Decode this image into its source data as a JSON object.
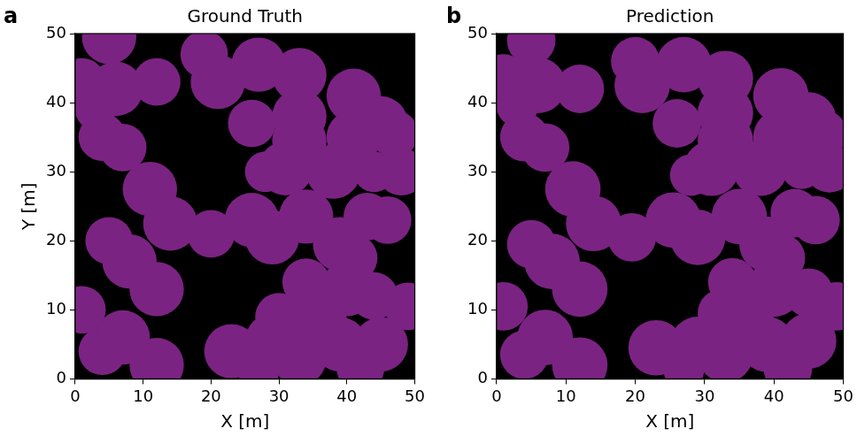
{
  "chart_data": [
    {
      "type": "bubble",
      "panel_label": "a",
      "title": "Ground Truth",
      "x_label": "X [m]",
      "y_label": "Y [m]",
      "xlim": [
        0,
        50
      ],
      "ylim": [
        0,
        50
      ],
      "xticks": [
        0,
        10,
        20,
        30,
        40,
        50
      ],
      "yticks": [
        0,
        10,
        20,
        30,
        40,
        50
      ],
      "grid": false,
      "color": "#7b2382",
      "points": [
        {
          "x": 5,
          "y": 49.5,
          "r": 4
        },
        {
          "x": 1,
          "y": 43,
          "r": 3.5
        },
        {
          "x": 6,
          "y": 42,
          "r": 4
        },
        {
          "x": 12,
          "y": 43,
          "r": 3.5
        },
        {
          "x": 3,
          "y": 39,
          "r": 3
        },
        {
          "x": 4,
          "y": 35,
          "r": 3.5
        },
        {
          "x": 7,
          "y": 33.5,
          "r": 3.5
        },
        {
          "x": 19,
          "y": 47,
          "r": 3.5
        },
        {
          "x": 21,
          "y": 43,
          "r": 4
        },
        {
          "x": 27,
          "y": 45.5,
          "r": 4
        },
        {
          "x": 33,
          "y": 44,
          "r": 4
        },
        {
          "x": 41,
          "y": 41,
          "r": 4
        },
        {
          "x": 33,
          "y": 38,
          "r": 4
        },
        {
          "x": 26,
          "y": 37,
          "r": 3.5
        },
        {
          "x": 45,
          "y": 37,
          "r": 4
        },
        {
          "x": 33,
          "y": 34.5,
          "r": 4
        },
        {
          "x": 41,
          "y": 35,
          "r": 4
        },
        {
          "x": 47,
          "y": 35.5,
          "r": 3.5
        },
        {
          "x": 31,
          "y": 30.5,
          "r": 4
        },
        {
          "x": 38,
          "y": 30,
          "r": 4
        },
        {
          "x": 48,
          "y": 30,
          "r": 3.5
        },
        {
          "x": 11,
          "y": 27.5,
          "r": 4
        },
        {
          "x": 14,
          "y": 22.5,
          "r": 4
        },
        {
          "x": 20,
          "y": 21,
          "r": 3.5
        },
        {
          "x": 26,
          "y": 23,
          "r": 4
        },
        {
          "x": 29,
          "y": 20.5,
          "r": 4
        },
        {
          "x": 34,
          "y": 23.5,
          "r": 4
        },
        {
          "x": 43,
          "y": 23.5,
          "r": 3.5
        },
        {
          "x": 39,
          "y": 19.5,
          "r": 4
        },
        {
          "x": 46,
          "y": 23,
          "r": 3.5
        },
        {
          "x": 41,
          "y": 17.5,
          "r": 3.5
        },
        {
          "x": 5,
          "y": 20,
          "r": 3.5
        },
        {
          "x": 8,
          "y": 17,
          "r": 4
        },
        {
          "x": 12,
          "y": 13,
          "r": 4
        },
        {
          "x": 1,
          "y": 10,
          "r": 3.5
        },
        {
          "x": 4,
          "y": 4,
          "r": 3.5
        },
        {
          "x": 7,
          "y": 6,
          "r": 4
        },
        {
          "x": 12,
          "y": 2,
          "r": 4
        },
        {
          "x": 23,
          "y": 4,
          "r": 4
        },
        {
          "x": 29,
          "y": 5.5,
          "r": 4
        },
        {
          "x": 27,
          "y": 1,
          "r": 3
        },
        {
          "x": 33,
          "y": 3,
          "r": 4
        },
        {
          "x": 36,
          "y": 8.5,
          "r": 4
        },
        {
          "x": 30,
          "y": 9,
          "r": 3.5
        },
        {
          "x": 34,
          "y": 14,
          "r": 3.5
        },
        {
          "x": 40,
          "y": 13,
          "r": 4
        },
        {
          "x": 44,
          "y": 12,
          "r": 3.5
        },
        {
          "x": 49,
          "y": 10.5,
          "r": 3.5
        },
        {
          "x": 39,
          "y": 5,
          "r": 4
        },
        {
          "x": 45,
          "y": 5,
          "r": 4
        },
        {
          "x": 42,
          "y": 1.5,
          "r": 3.5
        },
        {
          "x": 44,
          "y": 30,
          "r": 3
        },
        {
          "x": 28,
          "y": 30,
          "r": 3
        }
      ]
    },
    {
      "type": "bubble",
      "panel_label": "b",
      "title": "Prediction",
      "x_label": "X [m]",
      "xlim": [
        0,
        50
      ],
      "ylim": [
        0,
        50
      ],
      "xticks": [
        0,
        10,
        20,
        30,
        40,
        50
      ],
      "yticks": [
        0,
        10,
        20,
        30,
        40,
        50
      ],
      "grid": false,
      "color": "#7b2382",
      "points": [
        {
          "x": 5,
          "y": 49,
          "r": 3.5
        },
        {
          "x": 1,
          "y": 43.5,
          "r": 3.5
        },
        {
          "x": 6,
          "y": 42.5,
          "r": 4
        },
        {
          "x": 12,
          "y": 42,
          "r": 3.5
        },
        {
          "x": 3,
          "y": 39.5,
          "r": 3
        },
        {
          "x": 4,
          "y": 35,
          "r": 3.5
        },
        {
          "x": 7,
          "y": 33.5,
          "r": 3.5
        },
        {
          "x": 20,
          "y": 46,
          "r": 3.5
        },
        {
          "x": 21,
          "y": 42.5,
          "r": 4
        },
        {
          "x": 27,
          "y": 45.5,
          "r": 4
        },
        {
          "x": 33,
          "y": 43.5,
          "r": 4
        },
        {
          "x": 41,
          "y": 41,
          "r": 4
        },
        {
          "x": 33,
          "y": 38.5,
          "r": 4
        },
        {
          "x": 26,
          "y": 37,
          "r": 3.5
        },
        {
          "x": 45,
          "y": 37.5,
          "r": 4
        },
        {
          "x": 33,
          "y": 34.5,
          "r": 4
        },
        {
          "x": 41,
          "y": 35,
          "r": 4
        },
        {
          "x": 47,
          "y": 35.5,
          "r": 3.5
        },
        {
          "x": 31,
          "y": 30.5,
          "r": 4
        },
        {
          "x": 38,
          "y": 30.5,
          "r": 4
        },
        {
          "x": 48,
          "y": 30.5,
          "r": 3.5
        },
        {
          "x": 11,
          "y": 27.5,
          "r": 4
        },
        {
          "x": 14,
          "y": 22.5,
          "r": 4
        },
        {
          "x": 19.5,
          "y": 20.5,
          "r": 3.5
        },
        {
          "x": 25.5,
          "y": 23,
          "r": 4
        },
        {
          "x": 29,
          "y": 20.5,
          "r": 4
        },
        {
          "x": 35,
          "y": 23.5,
          "r": 4
        },
        {
          "x": 43,
          "y": 24,
          "r": 3.5
        },
        {
          "x": 39,
          "y": 19.5,
          "r": 4
        },
        {
          "x": 46,
          "y": 23,
          "r": 3.5
        },
        {
          "x": 41,
          "y": 17.5,
          "r": 3.5
        },
        {
          "x": 5,
          "y": 19.5,
          "r": 3.5
        },
        {
          "x": 8,
          "y": 17,
          "r": 4
        },
        {
          "x": 12,
          "y": 13,
          "r": 4
        },
        {
          "x": 1,
          "y": 10.5,
          "r": 3.5
        },
        {
          "x": 4,
          "y": 3.5,
          "r": 3.5
        },
        {
          "x": 7,
          "y": 6,
          "r": 4
        },
        {
          "x": 12,
          "y": 2,
          "r": 4
        },
        {
          "x": 23,
          "y": 4.5,
          "r": 4
        },
        {
          "x": 29,
          "y": 5,
          "r": 4
        },
        {
          "x": 27,
          "y": 1.5,
          "r": 3
        },
        {
          "x": 33,
          "y": 3.5,
          "r": 4
        },
        {
          "x": 36,
          "y": 8.5,
          "r": 4
        },
        {
          "x": 32.5,
          "y": 9.5,
          "r": 3.5
        },
        {
          "x": 34,
          "y": 14,
          "r": 3.5
        },
        {
          "x": 40,
          "y": 13,
          "r": 4
        },
        {
          "x": 45,
          "y": 12.5,
          "r": 3.5
        },
        {
          "x": 49,
          "y": 10.5,
          "r": 3.5
        },
        {
          "x": 39,
          "y": 5,
          "r": 4
        },
        {
          "x": 45,
          "y": 5.5,
          "r": 4
        },
        {
          "x": 42,
          "y": 1.5,
          "r": 3.5
        },
        {
          "x": 44,
          "y": 30.5,
          "r": 3
        },
        {
          "x": 28,
          "y": 29.5,
          "r": 3
        }
      ]
    }
  ]
}
